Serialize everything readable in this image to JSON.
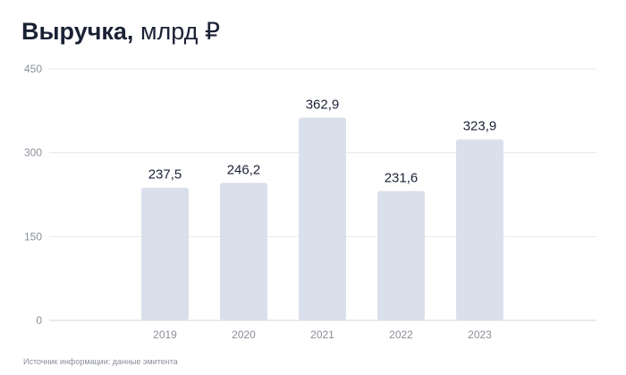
{
  "header": {
    "title_bold": "Выручка,",
    "title_unit": "млрд ₽"
  },
  "footer": {
    "source": "Источник информации: данные эмитента"
  },
  "colors": {
    "bar": "#dae0eb",
    "grid": "#e6e8ec",
    "axis_text": "#8a8f99",
    "value_text": "#1b2235"
  },
  "chart_data": {
    "type": "bar",
    "categories": [
      "2019",
      "2020",
      "2021",
      "2022",
      "2023"
    ],
    "values": [
      237.5,
      246.2,
      362.9,
      231.6,
      323.9
    ],
    "value_labels": [
      "237,5",
      "246,2",
      "362,9",
      "231,6",
      "323,9"
    ],
    "title": "Выручка, млрд ₽",
    "xlabel": "",
    "ylabel": "",
    "ylim": [
      0,
      450
    ],
    "yticks": [
      0,
      150,
      300,
      450
    ],
    "grid": true,
    "legend": "none"
  }
}
